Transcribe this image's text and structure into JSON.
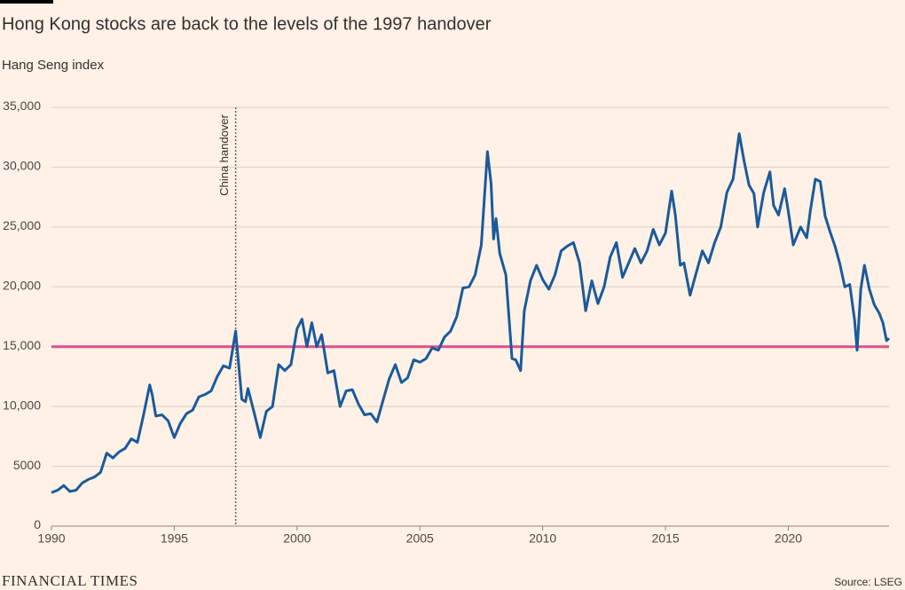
{
  "chart_data": {
    "type": "line",
    "title": "Hong Kong stocks are back to the levels of the 1997 handover",
    "subtitle": "Hang Seng index",
    "brand": "FINANCIAL TIMES",
    "source": "Source: LSEG",
    "xlim": [
      1990,
      2024.1
    ],
    "xticks": [
      1990,
      1995,
      2000,
      2005,
      2010,
      2015,
      2020
    ],
    "ylim": [
      0,
      35000
    ],
    "yticks": [
      0,
      5000,
      {
        "value": 10000,
        "label": "10,000"
      },
      {
        "value": 15000,
        "label": "15,000"
      },
      {
        "value": 20000,
        "label": "20,000"
      },
      {
        "value": 25000,
        "label": "25,000"
      },
      {
        "value": 30000,
        "label": "30,000"
      },
      {
        "value": 35000,
        "label": "35,000"
      }
    ],
    "grid": true,
    "reference_line": {
      "value": 15000,
      "color": "#e0508b"
    },
    "annotations": [
      {
        "text": "China handover",
        "x": 1997.5
      }
    ],
    "series": [
      {
        "name": "Hang Seng index",
        "color": "#1a5a9c",
        "x": [
          1990,
          1990.25,
          1990.5,
          1990.75,
          1991,
          1991.25,
          1991.5,
          1991.75,
          1992,
          1992.25,
          1992.5,
          1992.75,
          1993,
          1993.25,
          1993.5,
          1993.75,
          1994,
          1994.1,
          1994.25,
          1994.5,
          1994.75,
          1995,
          1995.25,
          1995.5,
          1995.75,
          1996,
          1996.25,
          1996.5,
          1996.75,
          1997,
          1997.25,
          1997.5,
          1997.6,
          1997.75,
          1997.9,
          1998,
          1998.25,
          1998.5,
          1998.75,
          1999,
          1999.25,
          1999.5,
          1999.75,
          2000,
          2000.2,
          2000.4,
          2000.6,
          2000.8,
          2001,
          2001.25,
          2001.5,
          2001.75,
          2002,
          2002.25,
          2002.5,
          2002.75,
          2003,
          2003.25,
          2003.5,
          2003.75,
          2004,
          2004.25,
          2004.5,
          2004.75,
          2005,
          2005.25,
          2005.5,
          2005.75,
          2006,
          2006.25,
          2006.5,
          2006.75,
          2007,
          2007.25,
          2007.5,
          2007.75,
          2007.9,
          2008,
          2008.1,
          2008.25,
          2008.5,
          2008.75,
          2008.9,
          2009.1,
          2009.25,
          2009.5,
          2009.75,
          2010,
          2010.25,
          2010.5,
          2010.75,
          2011,
          2011.25,
          2011.5,
          2011.75,
          2012,
          2012.25,
          2012.5,
          2012.75,
          2013,
          2013.25,
          2013.5,
          2013.75,
          2014,
          2014.25,
          2014.5,
          2014.75,
          2015,
          2015.25,
          2015.4,
          2015.6,
          2015.75,
          2016,
          2016.2,
          2016.5,
          2016.75,
          2017,
          2017.25,
          2017.5,
          2017.75,
          2018,
          2018.2,
          2018.4,
          2018.6,
          2018.75,
          2019,
          2019.25,
          2019.4,
          2019.6,
          2019.85,
          2020,
          2020.2,
          2020.5,
          2020.75,
          2020.9,
          2021.1,
          2021.3,
          2021.5,
          2021.7,
          2021.9,
          2022.1,
          2022.3,
          2022.5,
          2022.7,
          2022.8,
          2022.95,
          2023.1,
          2023.3,
          2023.5,
          2023.7,
          2023.85,
          2024,
          2024.1
        ],
        "values": [
          2800,
          3000,
          3400,
          2900,
          3000,
          3600,
          3900,
          4100,
          4500,
          6100,
          5700,
          6200,
          6500,
          7300,
          7000,
          9300,
          11800,
          11000,
          9200,
          9300,
          8800,
          7400,
          8600,
          9400,
          9700,
          10800,
          11000,
          11300,
          12500,
          13400,
          13200,
          16300,
          14000,
          10600,
          10400,
          11500,
          9500,
          7400,
          9600,
          10000,
          13500,
          13000,
          13500,
          16500,
          17300,
          15000,
          17000,
          15000,
          16000,
          12800,
          13000,
          10000,
          11300,
          11400,
          10200,
          9300,
          9400,
          8700,
          10500,
          12300,
          13500,
          12000,
          12400,
          13900,
          13700,
          14000,
          14900,
          14700,
          15800,
          16300,
          17500,
          19900,
          20000,
          21000,
          23500,
          31300,
          28600,
          24000,
          25700,
          22800,
          21000,
          14000,
          13900,
          13000,
          18000,
          20500,
          21800,
          20600,
          19800,
          21000,
          23000,
          23400,
          23700,
          22000,
          18000,
          20500,
          18600,
          20000,
          22500,
          23700,
          20800,
          22000,
          23200,
          22000,
          23000,
          24800,
          23500,
          24500,
          28000,
          26000,
          21800,
          22000,
          19300,
          20800,
          23000,
          22000,
          23700,
          25000,
          27900,
          29000,
          32800,
          30500,
          28500,
          27800,
          25000,
          27900,
          29600,
          26800,
          26000,
          28200,
          26300,
          23500,
          25000,
          24100,
          26400,
          29000,
          28800,
          25900,
          24600,
          23400,
          21900,
          20000,
          20200,
          17200,
          14700,
          19800,
          21800,
          19800,
          18500,
          17800,
          17000,
          15500,
          15700
        ]
      }
    ]
  }
}
